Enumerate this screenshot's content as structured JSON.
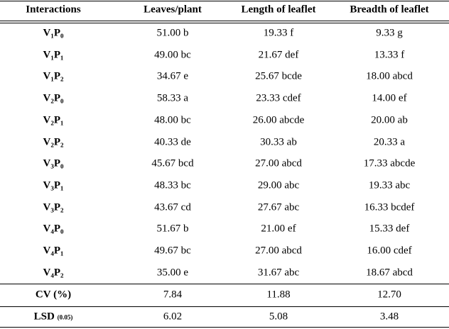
{
  "table": {
    "header": [
      "Interactions",
      "Leaves/plant",
      "Length of leaflet",
      "Breadth of leaflet"
    ],
    "rows": [
      [
        "V₁P₀",
        "51.00 b",
        "19.33 f",
        "9.33 g"
      ],
      [
        "V₁P₁",
        "49.00 bc",
        "21.67 def",
        "13.33 f"
      ],
      [
        "V₁P₂",
        "34.67 e",
        "25.67 bcde",
        "18.00 abcd"
      ],
      [
        "V₂P₀",
        "58.33 a",
        "23.33 cdef",
        "14.00 ef"
      ],
      [
        "V₂P₁",
        "48.00 bc",
        "26.00 abcde",
        "20.00 ab"
      ],
      [
        "V₂P₂",
        "40.33 de",
        "30.33 ab",
        "20.33 a"
      ],
      [
        "V₃P₀",
        "45.67 bcd",
        "27.00 abcd",
        "17.33 abcde"
      ],
      [
        "V₃P₁",
        "48.33 bc",
        "29.00 abc",
        "19.33 abc"
      ],
      [
        "V₃P₂",
        "43.67 cd",
        "27.67 abc",
        "16.33 bcdef"
      ],
      [
        "V₄P₀",
        "51.67 b",
        "21.00 ef",
        "15.33 def"
      ],
      [
        "V₄P₁",
        "49.67 bc",
        "27.00 abcd",
        "16.00 cdef"
      ],
      [
        "V₄P₂",
        "35.00 e",
        "31.67 abc",
        "18.67 abcd"
      ]
    ],
    "footer": [
      {
        "label": "CV (%)",
        "values": [
          "7.84",
          "11.88",
          "12.70"
        ]
      },
      {
        "label": "LSD",
        "label_sub": "(0.05)",
        "values": [
          "6.02",
          "5.08",
          "3.48"
        ]
      }
    ]
  }
}
